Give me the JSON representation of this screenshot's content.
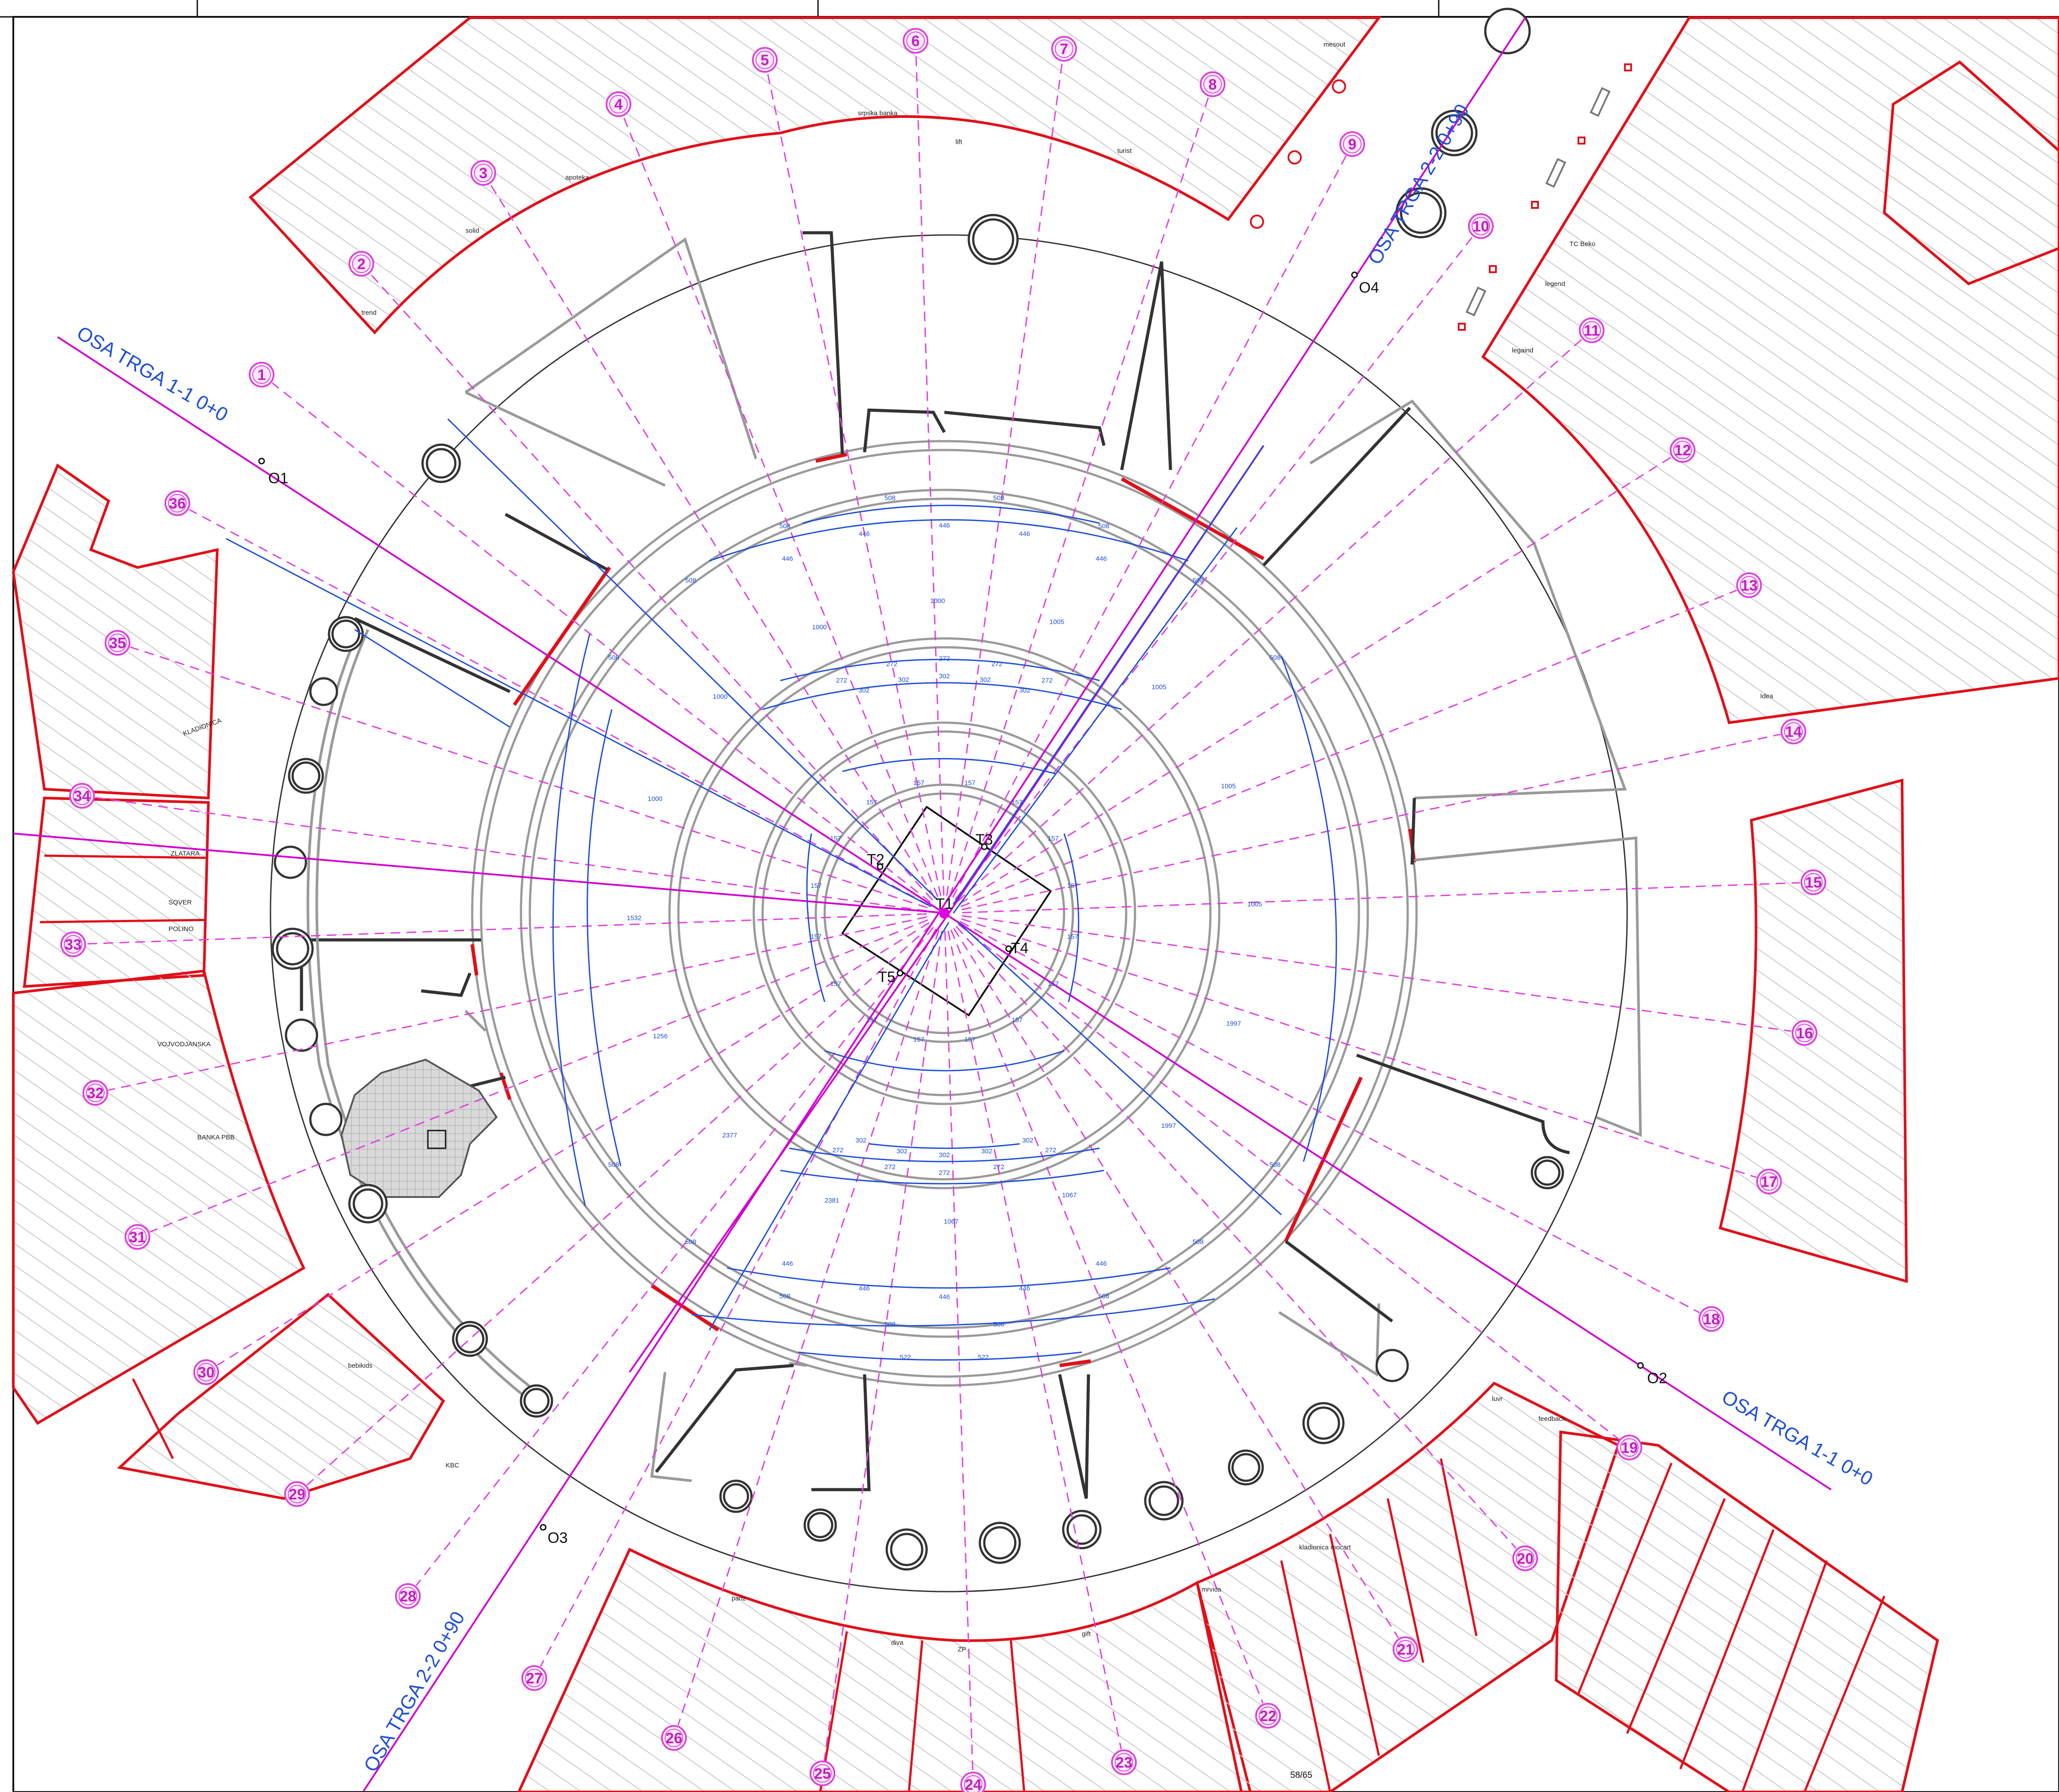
{
  "colors": {
    "shop_outline": "#e0101a",
    "axis_line": "#d000d0",
    "ray_line": "#e040e0",
    "dimension": "#1f4fd8",
    "wall_gray": "#9a9a9a",
    "wall_dark": "#333333",
    "hatch": "#c8c8c8"
  },
  "axes": [
    {
      "id": "osa-1-1-start",
      "label": "OSA TRGA 1-1  0+0"
    },
    {
      "id": "osa-1-1-end",
      "label": "OSA TRGA 1-1  0+0"
    },
    {
      "id": "osa-2-2-start",
      "label": "OSA TRGA 2-2  0+90"
    },
    {
      "id": "osa-2-2-end",
      "label": "OSA TRGA 2-2  0+90"
    }
  ],
  "points": [
    {
      "label": "O1"
    },
    {
      "label": "O2"
    },
    {
      "label": "O3"
    },
    {
      "label": "O4"
    },
    {
      "label": "T1"
    },
    {
      "label": "T2"
    },
    {
      "label": "T3"
    },
    {
      "label": "T4"
    },
    {
      "label": "T5"
    }
  ],
  "ray_numbers": [
    "1",
    "2",
    "3",
    "4",
    "5",
    "6",
    "7",
    "8",
    "9",
    "10",
    "11",
    "12",
    "13",
    "14",
    "15",
    "16",
    "17",
    "18",
    "19",
    "20",
    "21",
    "22",
    "23",
    "24",
    "25",
    "26",
    "27",
    "28",
    "29",
    "30",
    "31",
    "32",
    "33",
    "34",
    "35",
    "36"
  ],
  "shops": [
    "trend",
    "solid",
    "apoteka",
    "srpska banka",
    "lift",
    "turist",
    "mesout",
    "TC Beko",
    "legend",
    "legaind",
    "Idea",
    "ZLATARA",
    "SQVER",
    "POLINO",
    "VOJVODJANSKA",
    "BANKA PBB",
    "bebikids",
    "KBC",
    "KLADIONICA",
    "pariz",
    "diva",
    "ZP",
    "gift",
    "mrvica",
    "kladionica mocart",
    "luvr",
    "feedback"
  ],
  "dimensions": {
    "outer_ring": [
      "508",
      "508",
      "508",
      "508",
      "508",
      "508",
      "508",
      "508",
      "508",
      "508",
      "508",
      "508",
      "508",
      "508",
      "508",
      "508",
      "522",
      "522"
    ],
    "middle_ring": [
      "446",
      "446",
      "446",
      "446",
      "446",
      "446",
      "446",
      "446",
      "446",
      "446"
    ],
    "inner_ring_a": [
      "272",
      "272",
      "272",
      "272",
      "272",
      "272",
      "272",
      "272",
      "272",
      "272"
    ],
    "inner_ring_b": [
      "302",
      "302",
      "302",
      "302",
      "302",
      "302",
      "302",
      "302",
      "302",
      "302"
    ],
    "core_ring": [
      "157",
      "157",
      "157",
      "157",
      "157",
      "157",
      "157",
      "157",
      "157",
      "157",
      "157",
      "157",
      "157",
      "157",
      "157",
      "157"
    ],
    "diagonal": [
      "1000",
      "1000",
      "1000",
      "1000",
      "1005",
      "1005",
      "1005",
      "1005",
      "1997",
      "1997",
      "1067",
      "1067",
      "2381",
      "2377",
      "1256",
      "1532"
    ]
  },
  "sheet_number": "58/65"
}
